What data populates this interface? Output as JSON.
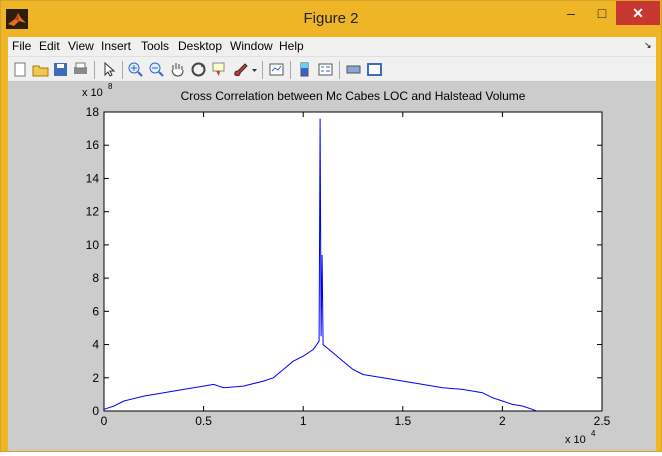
{
  "window": {
    "title": "Figure 2",
    "min_label": "–",
    "max_label": "□",
    "close_label": "✕"
  },
  "menu": [
    "File",
    "Edit",
    "View",
    "Insert",
    "Tools",
    "Desktop",
    "Window",
    "Help"
  ],
  "menu_overflow": "↘",
  "toolbar": {
    "icons": [
      "new-figure-icon",
      "open-file-icon",
      "save-icon",
      "print-icon",
      "arrow-select-icon",
      "zoom-in-icon",
      "zoom-out-icon",
      "pan-hand-icon",
      "rotate-3d-icon",
      "data-cursor-icon",
      "brush-icon",
      "brush-dropdown-icon",
      "link-plot-icon",
      "colorbar-icon",
      "legend-icon",
      "hide-plot-tools-icon",
      "show-plot-tools-icon"
    ]
  },
  "chart_data": {
    "type": "line",
    "title": "Cross Correlation between Mc Cabes LOC and Halstead Volume",
    "y_exponent_label": "x 10",
    "y_exponent_power": "8",
    "x_exponent_label": "x 10",
    "x_exponent_power": "4",
    "xlim": [
      0,
      25000
    ],
    "ylim": [
      0,
      18
    ],
    "xticks": [
      0,
      5000,
      10000,
      15000,
      20000,
      25000
    ],
    "xtick_labels": [
      "0",
      "0.5",
      "1",
      "1.5",
      "2",
      "2.5"
    ],
    "yticks": [
      0,
      2,
      4,
      6,
      8,
      10,
      12,
      14,
      16,
      18
    ],
    "ytick_labels": [
      "0",
      "2",
      "4",
      "6",
      "8",
      "10",
      "12",
      "14",
      "16",
      "18"
    ],
    "line_color": "#0000ff",
    "series": [
      {
        "x": [
          0,
          500,
          1000,
          2000,
          3000,
          4000,
          5000,
          5500,
          6000,
          7000,
          8000,
          8500,
          9000,
          9500,
          10000,
          10500,
          10800,
          10850,
          10900,
          10950,
          11000,
          11500,
          12000,
          12500,
          13000,
          14000,
          15000,
          16000,
          17000,
          18000,
          19000,
          19500,
          20000,
          20500,
          21000,
          21500,
          21700
        ],
        "y": [
          0.1,
          0.3,
          0.6,
          0.9,
          1.1,
          1.3,
          1.5,
          1.6,
          1.4,
          1.5,
          1.8,
          2.0,
          2.5,
          3.0,
          3.3,
          3.7,
          4.2,
          17.6,
          4.5,
          9.4,
          4.0,
          3.5,
          3.0,
          2.5,
          2.2,
          2.0,
          1.8,
          1.6,
          1.4,
          1.3,
          1.1,
          0.8,
          0.6,
          0.4,
          0.3,
          0.1,
          0.0
        ]
      }
    ]
  }
}
